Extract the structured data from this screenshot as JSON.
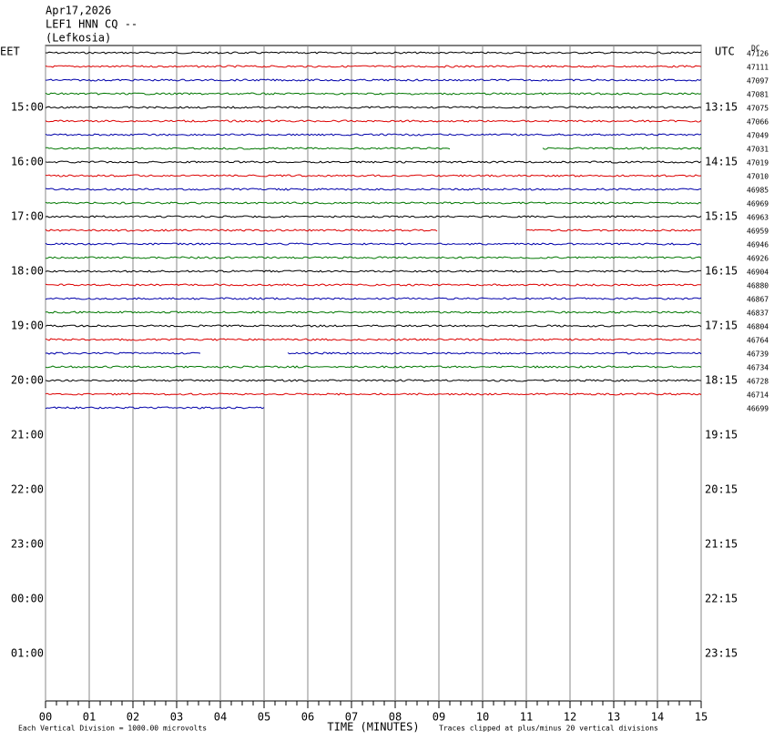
{
  "header": {
    "date": "Apr17,2026",
    "station": "LEF1 HNN CQ --",
    "location": "(Lefkosia)"
  },
  "left_axis": {
    "zone": "EET",
    "labels": [
      "15:00",
      "16:00",
      "17:00",
      "18:00",
      "19:00",
      "20:00",
      "21:00",
      "22:00",
      "23:00",
      "00:00",
      "01:00"
    ]
  },
  "right_axis": {
    "zone": "UTC",
    "labels": [
      "13:15",
      "14:15",
      "15:15",
      "16:15",
      "17:15",
      "18:15",
      "19:15",
      "20:15",
      "21:15",
      "22:15",
      "23:15"
    ]
  },
  "dc": {
    "title": "DC",
    "values": [
      "47126",
      "47111",
      "47097",
      "47081",
      "47075",
      "47066",
      "47049",
      "47031",
      "47019",
      "47010",
      "46985",
      "46969",
      "46963",
      "46959",
      "46946",
      "46926",
      "46904",
      "46880",
      "46867",
      "46837",
      "46804",
      "46764",
      "46739",
      "46734",
      "46728",
      "46714",
      "46699"
    ]
  },
  "x_axis": {
    "ticks": [
      "00",
      "01",
      "02",
      "03",
      "04",
      "05",
      "06",
      "07",
      "08",
      "09",
      "10",
      "11",
      "12",
      "13",
      "14",
      "15"
    ],
    "title": "TIME (MINUTES)"
  },
  "footer": {
    "scale": "Each Vertical Division = 1000.00 microvolts",
    "clip": "Traces clipped at plus/minus 20 vertical divisions"
  }
}
